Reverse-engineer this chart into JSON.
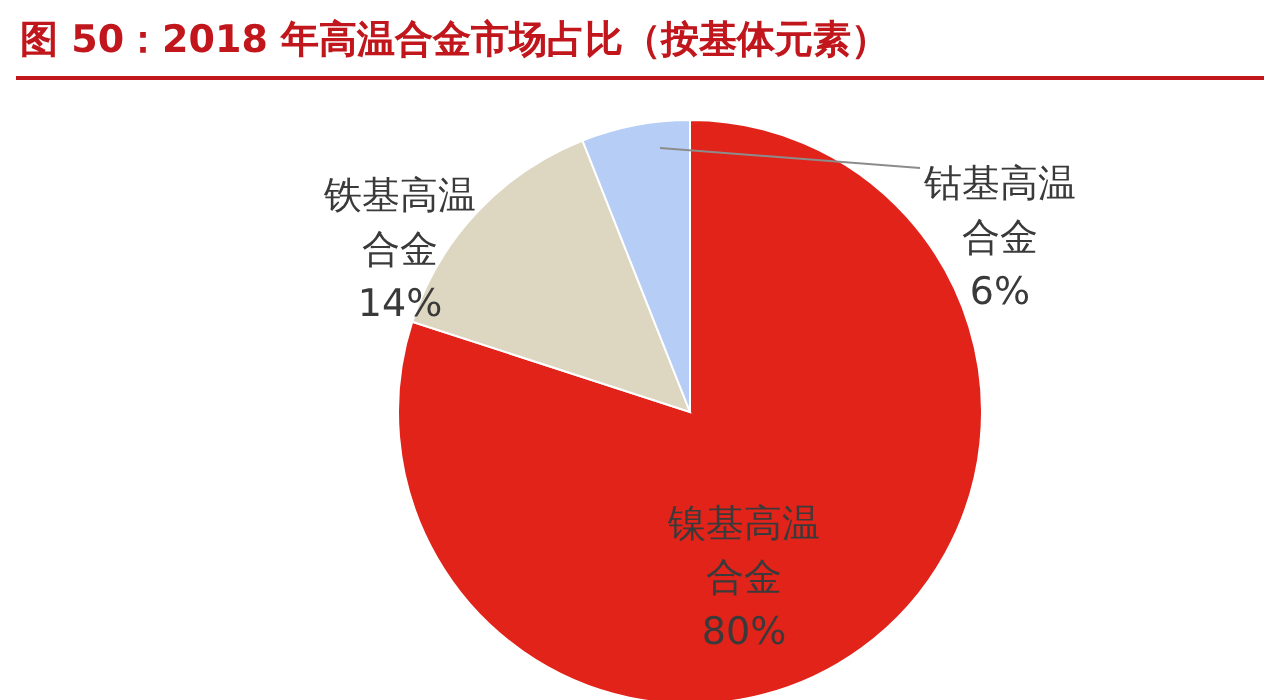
{
  "chart_data": {
    "type": "pie",
    "title": "图 50：2018 年高温合金市场占比（按基体元素）",
    "categories": [
      "镍基高温合金",
      "铁基高温合金",
      "钴基高温合金"
    ],
    "values": [
      80,
      14,
      6
    ],
    "colors": [
      "#e2231a",
      "#ddd6c1",
      "#b6cef5"
    ],
    "value_labels": [
      "80%",
      "14%",
      "6%"
    ]
  }
}
